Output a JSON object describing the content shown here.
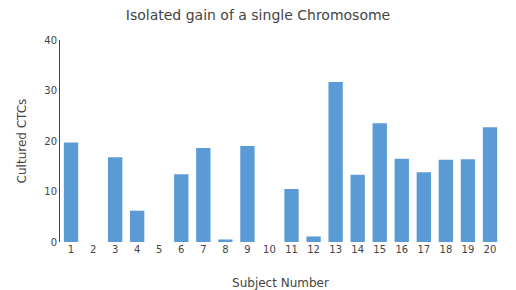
{
  "chart_data": {
    "type": "bar",
    "title": "Isolated gain of a single Chromosome",
    "xlabel": "Subject Number",
    "ylabel": "Cultured CTCs",
    "categories": [
      1,
      2,
      3,
      4,
      5,
      6,
      7,
      8,
      9,
      10,
      11,
      12,
      13,
      14,
      15,
      16,
      17,
      18,
      19,
      20
    ],
    "values": [
      19.7,
      0,
      16.8,
      6.2,
      0,
      13.4,
      18.6,
      0.5,
      19.0,
      0,
      10.5,
      1.1,
      31.7,
      13.3,
      23.5,
      16.5,
      13.8,
      16.3,
      16.4,
      22.7
    ],
    "color": "#5b9bd5",
    "ylim": [
      0,
      40
    ],
    "yticks": [
      0,
      10,
      20,
      30,
      40
    ],
    "grid": false
  }
}
